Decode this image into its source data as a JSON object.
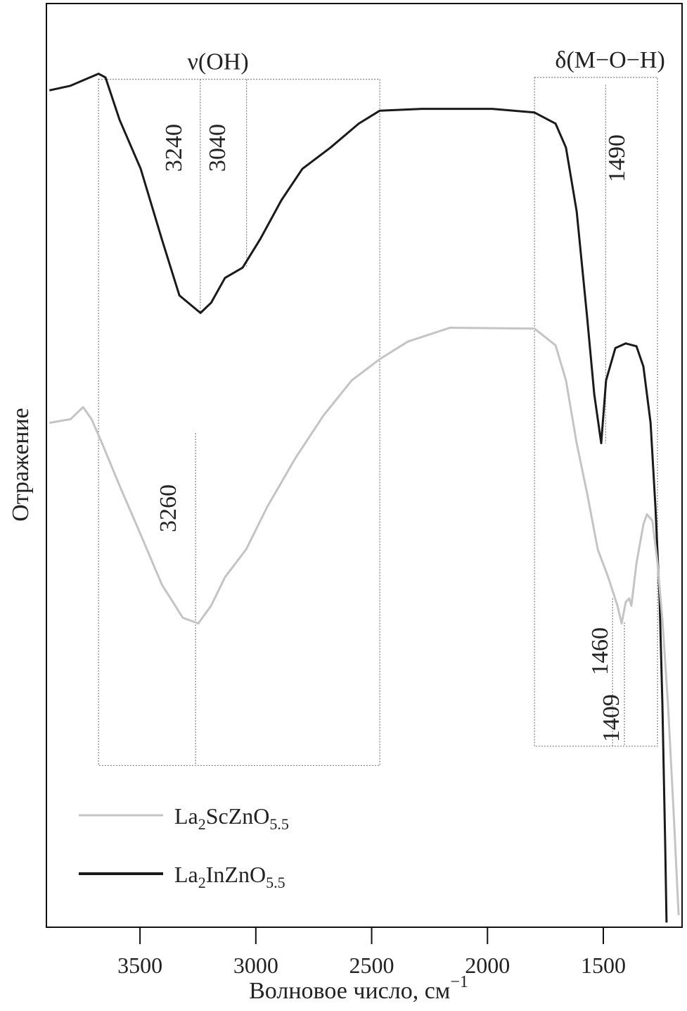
{
  "chart_data": {
    "type": "line",
    "title": "",
    "xlabel": "Волновое число, см",
    "xlabel_sup": "−1",
    "ylabel": "Отражение",
    "xlim": [
      3904,
      1160
    ],
    "ylim": [
      0,
      100
    ],
    "xticks": [
      3500,
      3000,
      2500,
      2000,
      1500
    ],
    "xtick_labels": [
      "3500",
      "3000",
      "2500",
      "2000",
      "1500"
    ],
    "grid": false,
    "legend_position": "bottom-left",
    "series": [
      {
        "name": "La2InZnO5.5",
        "label_main": "La",
        "sub1": "2",
        "label_mid": "InZnO",
        "sub2": "5.5",
        "color": "#1a1a1a",
        "x": [
          3891,
          3800,
          3679,
          3649,
          3588,
          3497,
          3406,
          3330,
          3239,
          3193,
          3133,
          3057,
          2981,
          2890,
          2799,
          2678,
          2556,
          2465,
          2283,
          1980,
          1797,
          1706,
          1661,
          1615,
          1570,
          1539,
          1509,
          1488,
          1448,
          1403,
          1357,
          1327,
          1296,
          1275,
          1257,
          1245,
          1233,
          1227
        ],
        "y": [
          90.6,
          91.1,
          92.4,
          92.0,
          87.4,
          82.1,
          74.5,
          68.4,
          66.5,
          67.6,
          70.3,
          71.4,
          74.5,
          78.7,
          82.1,
          84.4,
          87.0,
          88.4,
          88.6,
          88.6,
          88.2,
          87.0,
          84.4,
          77.5,
          66.1,
          57.7,
          52.4,
          59.2,
          62.7,
          63.2,
          62.9,
          60.7,
          54.6,
          45.5,
          35.6,
          24.2,
          8.9,
          0.5
        ]
      },
      {
        "name": "La2ScZnO5.5",
        "label_main": "La",
        "sub1": "2",
        "label_mid": "ScZnO",
        "sub2": "5.5",
        "color": "#c4c4c4",
        "x": [
          3891,
          3800,
          3746,
          3709,
          3664,
          3588,
          3497,
          3406,
          3315,
          3248,
          3193,
          3133,
          3042,
          2951,
          2829,
          2708,
          2586,
          2465,
          2344,
          2162,
          1797,
          1706,
          1661,
          1615,
          1570,
          1524,
          1479,
          1439,
          1421,
          1403,
          1388,
          1379,
          1357,
          1327,
          1312,
          1288,
          1266,
          1245,
          1221,
          1197,
          1175
        ],
        "y": [
          54.6,
          55.0,
          56.3,
          55.0,
          52.4,
          47.8,
          42.5,
          37.1,
          33.5,
          32.9,
          34.8,
          37.9,
          40.9,
          45.5,
          50.8,
          55.4,
          59.2,
          61.5,
          63.4,
          64.9,
          64.8,
          63.0,
          59.2,
          52.4,
          47.0,
          40.9,
          37.9,
          34.8,
          32.9,
          35.2,
          35.6,
          34.8,
          39.4,
          43.6,
          44.7,
          44.0,
          39.4,
          33.3,
          24.2,
          12.7,
          1.3
        ]
      }
    ],
    "annotations": {
      "boxes": [
        {
          "label": "ν(OH)",
          "x": [
            3679,
            2465
          ],
          "y": [
            17.5,
            91.8
          ]
        },
        {
          "label": "δ(M−O−H)",
          "x": [
            1797,
            1266
          ],
          "y": [
            19.6,
            92.0
          ]
        }
      ],
      "peaks": [
        {
          "label": "3240",
          "x": 3240,
          "y": [
            66.5,
            91.8
          ]
        },
        {
          "label": "3040",
          "x": 3040,
          "y": [
            71.4,
            91.8
          ]
        },
        {
          "label": "1490",
          "x": 1490,
          "y": [
            52.4,
            91.2
          ]
        },
        {
          "label": "3260",
          "x": 3260,
          "y": [
            17.5,
            53.5
          ]
        },
        {
          "label": "1409",
          "x": 1409,
          "y": [
            19.6,
            33.0
          ]
        },
        {
          "label": "1460",
          "x": 1460,
          "y": [
            19.6,
            35.6
          ]
        }
      ]
    }
  }
}
